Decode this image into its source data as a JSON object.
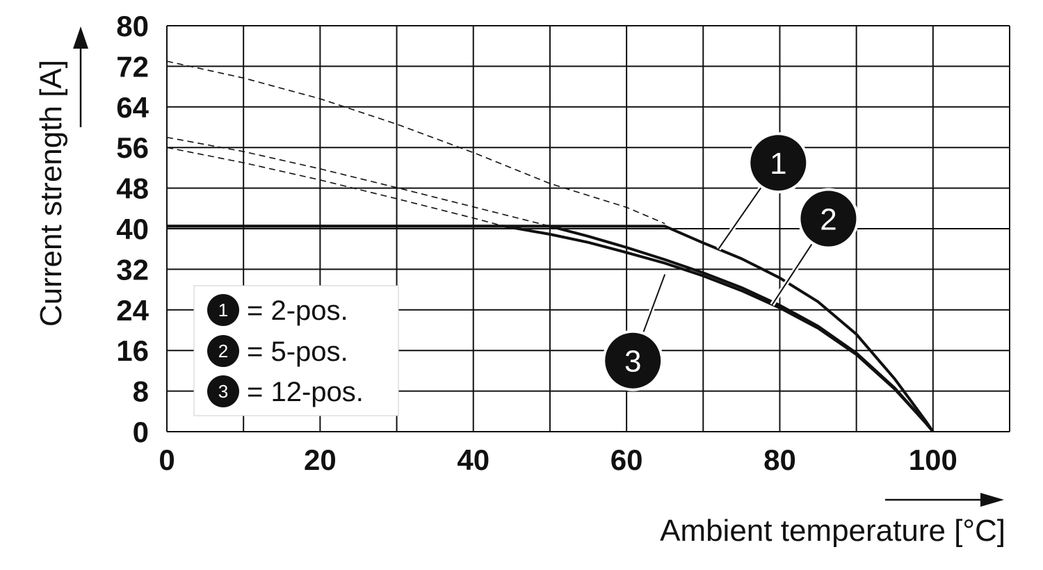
{
  "chart_data": {
    "type": "line",
    "xlabel": "Ambient temperature [°C]",
    "ylabel": "Current strength [A]",
    "xlim": [
      0,
      110
    ],
    "ylim": [
      0,
      80
    ],
    "x_ticks": [
      "0",
      "20",
      "40",
      "60",
      "80",
      "100"
    ],
    "y_ticks": [
      "0",
      "8",
      "16",
      "24",
      "32",
      "40",
      "48",
      "56",
      "64",
      "72",
      "80"
    ],
    "grid": true,
    "legend_position": "bottom-left",
    "legend": [
      {
        "marker": "1",
        "label": "= 2-pos."
      },
      {
        "marker": "2",
        "label": "= 5-pos."
      },
      {
        "marker": "3",
        "label": "= 12-pos."
      }
    ],
    "series": [
      {
        "marker": "1",
        "style": "solid",
        "x": [
          0,
          65,
          70,
          75,
          80,
          85,
          90,
          95,
          97,
          99,
          100
        ],
        "y": [
          40.5,
          40.5,
          37.2,
          34.1,
          30.3,
          25.6,
          19.2,
          10.4,
          6.3,
          2.2,
          0
        ]
      },
      {
        "marker": "2",
        "style": "solid",
        "x": [
          0,
          50,
          55,
          60,
          65,
          70,
          75,
          80,
          85,
          90,
          95,
          97,
          99,
          100
        ],
        "y": [
          40.5,
          40.5,
          38.5,
          36.3,
          33.9,
          31.3,
          28.4,
          24.9,
          20.8,
          15.5,
          8.6,
          5.2,
          1.8,
          0
        ]
      },
      {
        "marker": "3",
        "style": "solid",
        "x": [
          0,
          44,
          50,
          55,
          60,
          65,
          70,
          75,
          80,
          85,
          90,
          95,
          97,
          99,
          100
        ],
        "y": [
          40.5,
          40.5,
          38.9,
          37.3,
          35.3,
          33.2,
          30.7,
          27.8,
          24.4,
          20.4,
          15.2,
          8.4,
          5.1,
          1.8,
          0
        ]
      },
      {
        "marker": "1",
        "style": "dashed",
        "x": [
          0,
          10,
          20,
          30,
          40,
          50,
          60,
          65
        ],
        "y": [
          73.0,
          69.7,
          65.6,
          60.6,
          55.0,
          48.9,
          44.2,
          41.0
        ]
      },
      {
        "marker": "2",
        "style": "dashed",
        "x": [
          0,
          10,
          20,
          30,
          40,
          50
        ],
        "y": [
          58.0,
          55.2,
          51.8,
          48.1,
          44.3,
          40.5
        ]
      },
      {
        "marker": "3",
        "style": "dashed",
        "x": [
          0,
          10,
          20,
          30,
          40,
          44
        ],
        "y": [
          56.0,
          53.0,
          49.6,
          45.9,
          42.1,
          40.5
        ]
      }
    ],
    "markers": [
      {
        "label": "1",
        "x": 72,
        "y": 36
      },
      {
        "label": "2",
        "x": 79,
        "y": 25
      },
      {
        "label": "3",
        "x": 65,
        "y": 31
      }
    ],
    "colors": {
      "line": "#111111",
      "grid": "#111111",
      "marker_fill": "#111111",
      "marker_text": "#ffffff"
    }
  }
}
